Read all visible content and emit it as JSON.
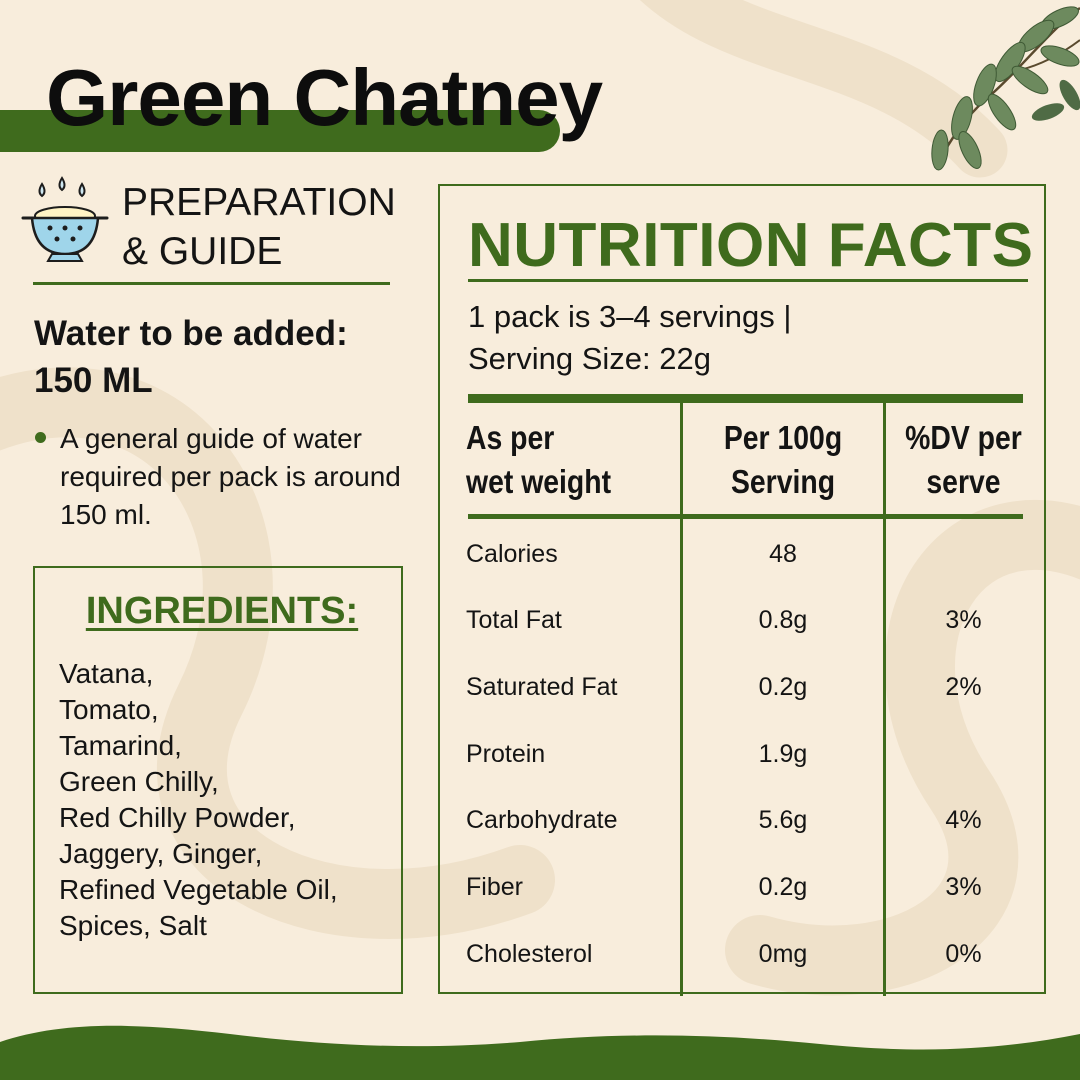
{
  "title": "Green Chatney",
  "preparation": {
    "heading_line1": "PREPARATION",
    "heading_line2": "& GUIDE",
    "water_label": "Water to be added:",
    "water_amount": "150 ML",
    "guide_text": "A general guide of water required per pack is around 150 ml."
  },
  "ingredients": {
    "heading": "INGREDIENTS:",
    "items": [
      "Vatana,",
      "Tomato,",
      "Tamarind,",
      "Green Chilly,",
      "Red Chilly Powder,",
      "Jaggery, Ginger,",
      "Refined Vegetable Oil,",
      "Spices, Salt"
    ]
  },
  "nutrition": {
    "heading": "NUTRITION FACTS",
    "serving_line1": "1 pack is 3–4 servings |",
    "serving_line2": "Serving Size: 22g",
    "columns": {
      "col1_line1": "As per",
      "col1_line2": "wet weight",
      "col2_line1": "Per 100g",
      "col2_line2": "Serving",
      "col3_line1": "%DV per",
      "col3_line2": "serve"
    },
    "rows": [
      {
        "name": "Calories",
        "per100g": "48",
        "dv": ""
      },
      {
        "name": "Total Fat",
        "per100g": "0.8g",
        "dv": "3%"
      },
      {
        "name": "Saturated Fat",
        "per100g": "0.2g",
        "dv": "2%"
      },
      {
        "name": "Protein",
        "per100g": "1.9g",
        "dv": ""
      },
      {
        "name": "Carbohydrate",
        "per100g": "5.6g",
        "dv": "4%"
      },
      {
        "name": "Fiber",
        "per100g": "0.2g",
        "dv": "3%"
      },
      {
        "name": "Cholesterol",
        "per100g": "0mg",
        "dv": "0%"
      }
    ]
  },
  "colors": {
    "accent_green": "#3f6b1d",
    "background": "#f8eddc"
  }
}
